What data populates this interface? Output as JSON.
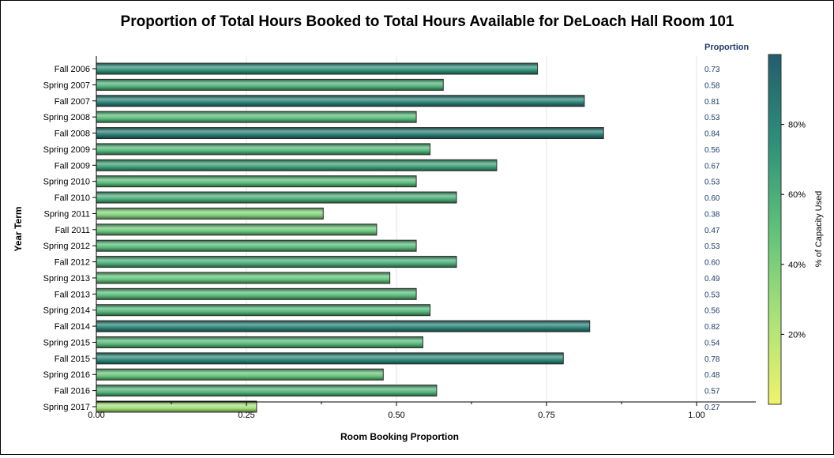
{
  "chart_data": {
    "type": "bar",
    "orientation": "horizontal",
    "title": "Proportion of Total Hours Booked to Total Hours Available for DeLoach Hall Room 101",
    "xlabel": "Room Booking Proportion",
    "ylabel": "Year Term",
    "xlim": [
      0,
      1.1
    ],
    "x_ticks": [
      {
        "value": 0,
        "label": "0.00"
      },
      {
        "value": 0.25,
        "label": "0.25"
      },
      {
        "value": 0.5,
        "label": "0.50"
      },
      {
        "value": 0.75,
        "label": "0.75"
      },
      {
        "value": 1.0,
        "label": "1.00"
      }
    ],
    "grid": "vertical",
    "categories": [
      "Fall 2006",
      "Spring 2007",
      "Fall 2007",
      "Spring 2008",
      "Fall 2008",
      "Spring 2009",
      "Fall 2009",
      "Spring 2010",
      "Fall 2010",
      "Spring 2011",
      "Fall 2011",
      "Spring 2012",
      "Fall 2012",
      "Spring 2013",
      "Fall 2013",
      "Spring 2014",
      "Fall 2014",
      "Spring 2015",
      "Fall 2015",
      "Spring 2016",
      "Fall 2016",
      "Spring 2017"
    ],
    "values": [
      0.735,
      0.578,
      0.813,
      0.533,
      0.845,
      0.556,
      0.667,
      0.533,
      0.6,
      0.378,
      0.467,
      0.533,
      0.6,
      0.489,
      0.533,
      0.556,
      0.822,
      0.544,
      0.778,
      0.478,
      0.567,
      0.267
    ],
    "value_labels": [
      "0.73",
      "0.58",
      "0.81",
      "0.53",
      "0.84",
      "0.56",
      "0.67",
      "0.53",
      "0.60",
      "0.38",
      "0.47",
      "0.53",
      "0.60",
      "0.49",
      "0.53",
      "0.56",
      "0.82",
      "0.54",
      "0.78",
      "0.48",
      "0.57",
      "0.27"
    ],
    "value_column_header": "Proportion",
    "colorbar": {
      "label": "% of Capacity Used",
      "range": [
        0,
        1
      ],
      "ticks": [
        "20%",
        "40%",
        "60%",
        "80%"
      ],
      "tick_values": [
        0.2,
        0.4,
        0.6,
        0.8
      ],
      "colors": [
        "#f1f26a",
        "#a9e27a",
        "#5fc27a",
        "#2e8f7a",
        "#235d6d"
      ]
    }
  }
}
